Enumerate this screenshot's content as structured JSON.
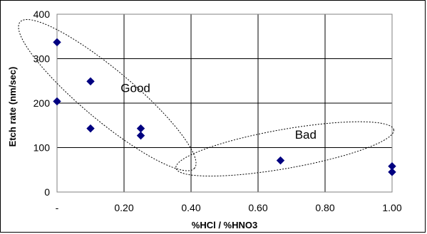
{
  "chart_data": {
    "type": "scatter",
    "title": "",
    "xlabel": "%HCl / %HNO3",
    "ylabel": "Etch rate (nm/sec)",
    "xlim": [
      0,
      1.0
    ],
    "ylim": [
      0,
      400
    ],
    "x_ticks": [
      0,
      0.2,
      0.4,
      0.6,
      0.8,
      1.0
    ],
    "x_tick_labels": [
      "-",
      "0.20",
      "0.40",
      "0.60",
      "0.80",
      "1.00"
    ],
    "y_ticks": [
      0,
      100,
      200,
      300,
      400
    ],
    "y_tick_labels": [
      "0",
      "100",
      "200",
      "300",
      "400"
    ],
    "grid": true,
    "legend": false,
    "marker_color": "#000080",
    "series": [
      {
        "x": [
          0.0,
          0.0,
          0.1,
          0.1,
          0.25,
          0.25,
          0.667,
          1.0,
          1.0
        ],
        "y": [
          337,
          204,
          249,
          143,
          143,
          127,
          71,
          58,
          45
        ]
      }
    ],
    "annotations": [
      {
        "text": "Good",
        "x": 0.19,
        "y": 225
      },
      {
        "text": "Bad",
        "x": 0.71,
        "y": 120
      }
    ],
    "groups": [
      {
        "label": "Good",
        "cx": 0.15,
        "cy": 218,
        "rx": 0.34,
        "ry": 57,
        "rotation": -40
      },
      {
        "label": "Bad",
        "cx": 0.68,
        "cy": 97,
        "rx": 0.33,
        "ry": 44,
        "rotation": 10
      }
    ]
  }
}
